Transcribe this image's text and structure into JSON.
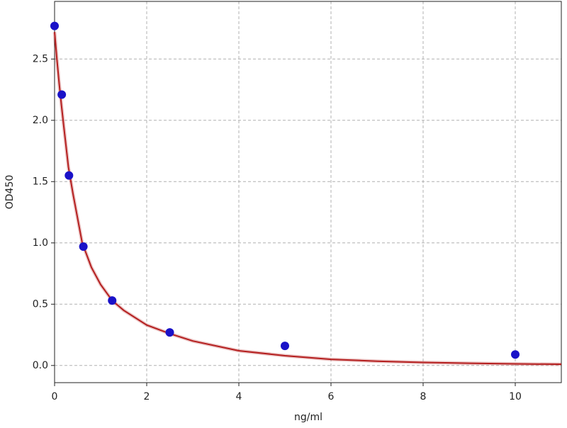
{
  "chart_data": {
    "type": "scatter",
    "x_label": "ng/ml",
    "y_label": "OD450",
    "x": [
      0,
      0.156,
      0.3125,
      0.625,
      1.25,
      2.5,
      5,
      10
    ],
    "values": [
      2.77,
      2.21,
      1.55,
      0.97,
      0.53,
      0.27,
      0.16,
      0.09
    ],
    "color": "#1a12c8",
    "fit": {
      "x": [
        0,
        0.05,
        0.1,
        0.15,
        0.2,
        0.3,
        0.4,
        0.6,
        0.8,
        1,
        1.25,
        1.5,
        2,
        2.5,
        3,
        4,
        5,
        6,
        7,
        8,
        9,
        10,
        11
      ],
      "values": [
        2.72,
        2.5,
        2.3,
        2.12,
        1.95,
        1.62,
        1.4,
        1.0,
        0.8,
        0.66,
        0.53,
        0.45,
        0.33,
        0.26,
        0.2,
        0.12,
        0.08,
        0.05,
        0.035,
        0.025,
        0.018,
        0.013,
        0.01
      ],
      "color": "#b41e1e"
    },
    "xlim": [
      0,
      11
    ],
    "ylim": [
      -0.14,
      2.97
    ],
    "xticks": [
      0,
      2,
      4,
      6,
      8,
      10
    ],
    "yticks": [
      {
        "value": 0,
        "label": "0.0"
      },
      0.5,
      {
        "value": 1,
        "label": "1.0"
      },
      1.5,
      {
        "value": 2,
        "label": "2.0"
      },
      2.5
    ],
    "grid": true
  }
}
